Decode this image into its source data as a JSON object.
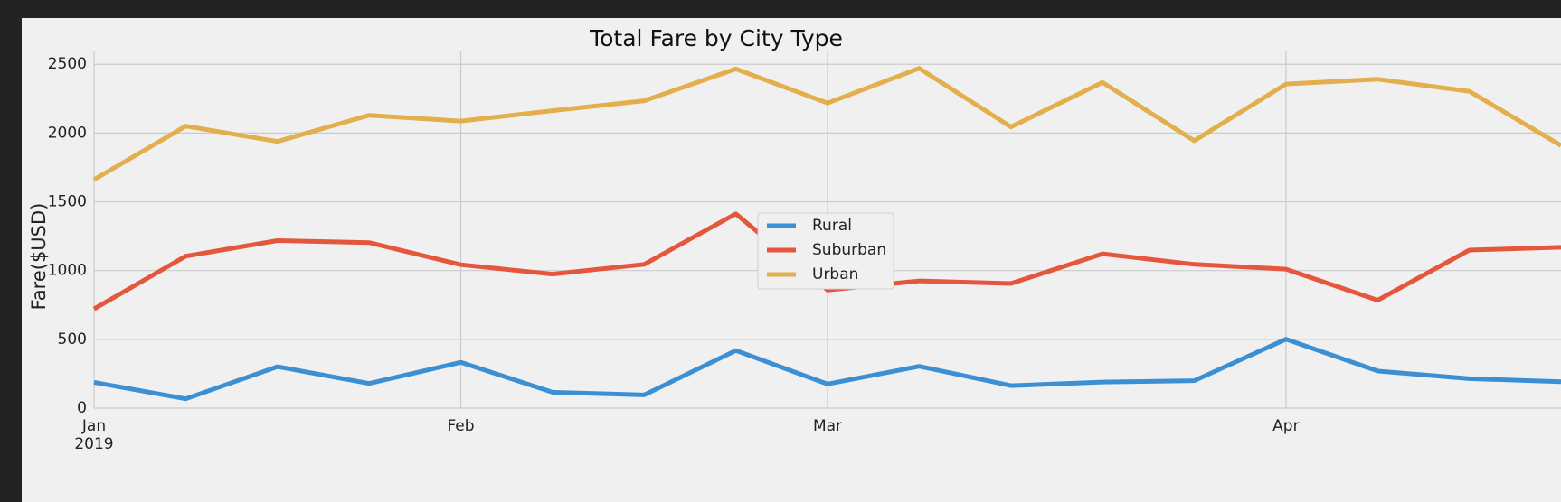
{
  "colors": {
    "page_background": "#232323",
    "figure_background": "#f0f0f0",
    "grid": "#cbcbcb",
    "Rural": "#3d8fd3",
    "Suburban": "#e5573c",
    "Urban": "#e3ae4c"
  },
  "chart_data": {
    "type": "line",
    "title": "Total Fare by City Type",
    "xlabel": "",
    "ylabel": "Fare($USD)",
    "x": [
      "2019-01-06",
      "2019-01-13",
      "2019-01-20",
      "2019-01-27",
      "2019-02-03",
      "2019-02-10",
      "2019-02-17",
      "2019-02-24",
      "2019-03-03",
      "2019-03-10",
      "2019-03-17",
      "2019-03-24",
      "2019-03-31",
      "2019-04-07",
      "2019-04-14",
      "2019-04-21",
      "2019-04-28"
    ],
    "x_range": [
      "2019-01-06",
      "2019-04-28"
    ],
    "xticks": [
      {
        "date": "2019-01-06",
        "label": "Jan",
        "sublabel": "2019"
      },
      {
        "date": "2019-02-03",
        "label": "Feb",
        "sublabel": ""
      },
      {
        "date": "2019-03-03",
        "label": "Mar",
        "sublabel": ""
      },
      {
        "date": "2019-04-07",
        "label": "Apr",
        "sublabel": ""
      }
    ],
    "ylim": [
      0,
      2600
    ],
    "yticks": [
      0,
      500,
      1000,
      1500,
      2000,
      2500
    ],
    "grid": true,
    "legend_position": "center",
    "series": [
      {
        "name": "Rural",
        "values": [
          187.9,
          67.7,
          301.2,
          179.5,
          333.1,
          115.8,
          95.8,
          419.1,
          175.1,
          303.9,
          163.4,
          189.8,
          199.4,
          501.2,
          269.8,
          214.1,
          191.9
        ]
      },
      {
        "name": "Suburban",
        "values": [
          721.6,
          1105.1,
          1218.2,
          1203.3,
          1042.8,
          974.3,
          1045.5,
          1412.7,
          858.5,
          925.3,
          906.2,
          1122.2,
          1045.1,
          1010.7,
          784.8,
          1149.3,
          1169.5
        ]
      },
      {
        "name": "Urban",
        "values": [
          1661.7,
          2050.4,
          1939.0,
          2129.5,
          2086.9,
          2162.6,
          2235.1,
          2466.3,
          2218.2,
          2470.9,
          2044.4,
          2368.4,
          1943.9,
          2356.7,
          2390.9,
          2303.8,
          1909.5
        ]
      }
    ]
  }
}
